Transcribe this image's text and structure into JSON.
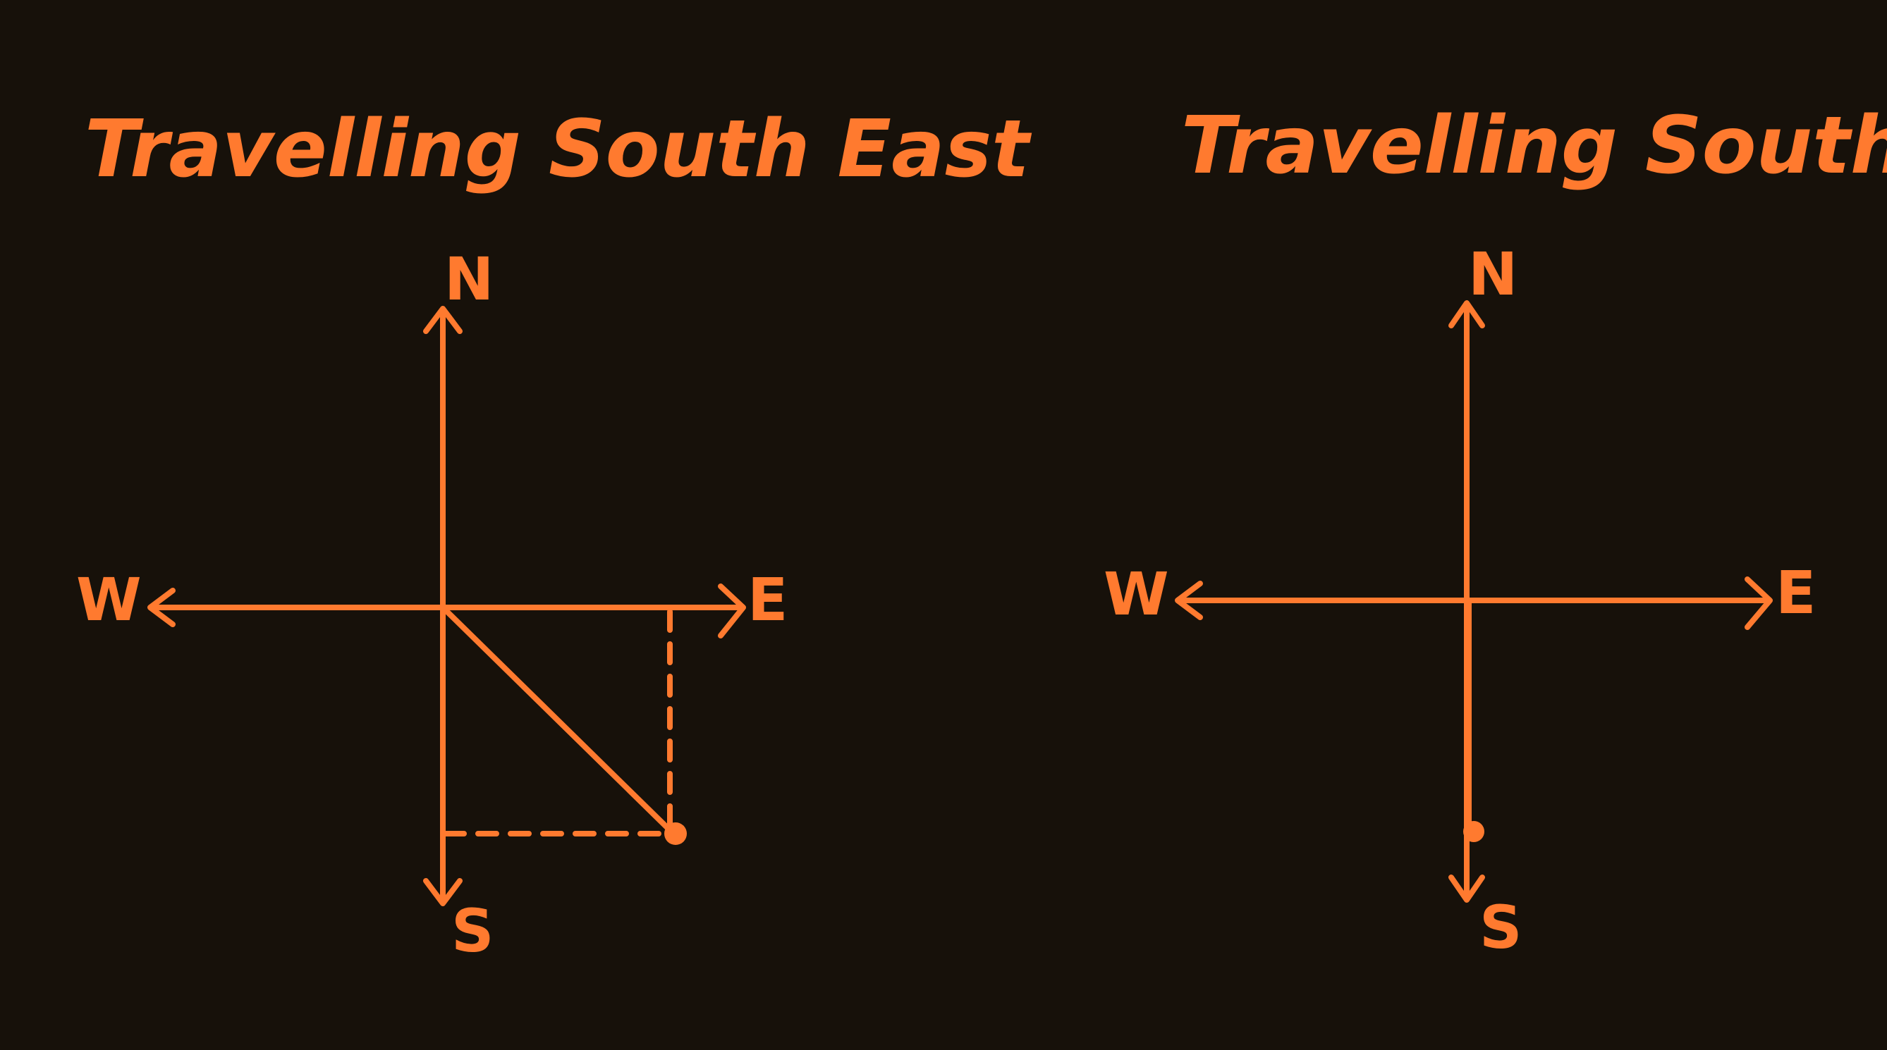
{
  "colors": {
    "background": "#17110a",
    "ink": "#ff7a2f"
  },
  "panels": [
    {
      "title": "Travelling South East",
      "labels": {
        "north": "N",
        "south": "S",
        "east": "E",
        "west": "W"
      },
      "heading": "south-east",
      "dashed_guides": true
    },
    {
      "title": "Travelling South",
      "labels": {
        "north": "N",
        "south": "S",
        "east": "E",
        "west": "W"
      },
      "heading": "south",
      "dashed_guides": false
    }
  ]
}
